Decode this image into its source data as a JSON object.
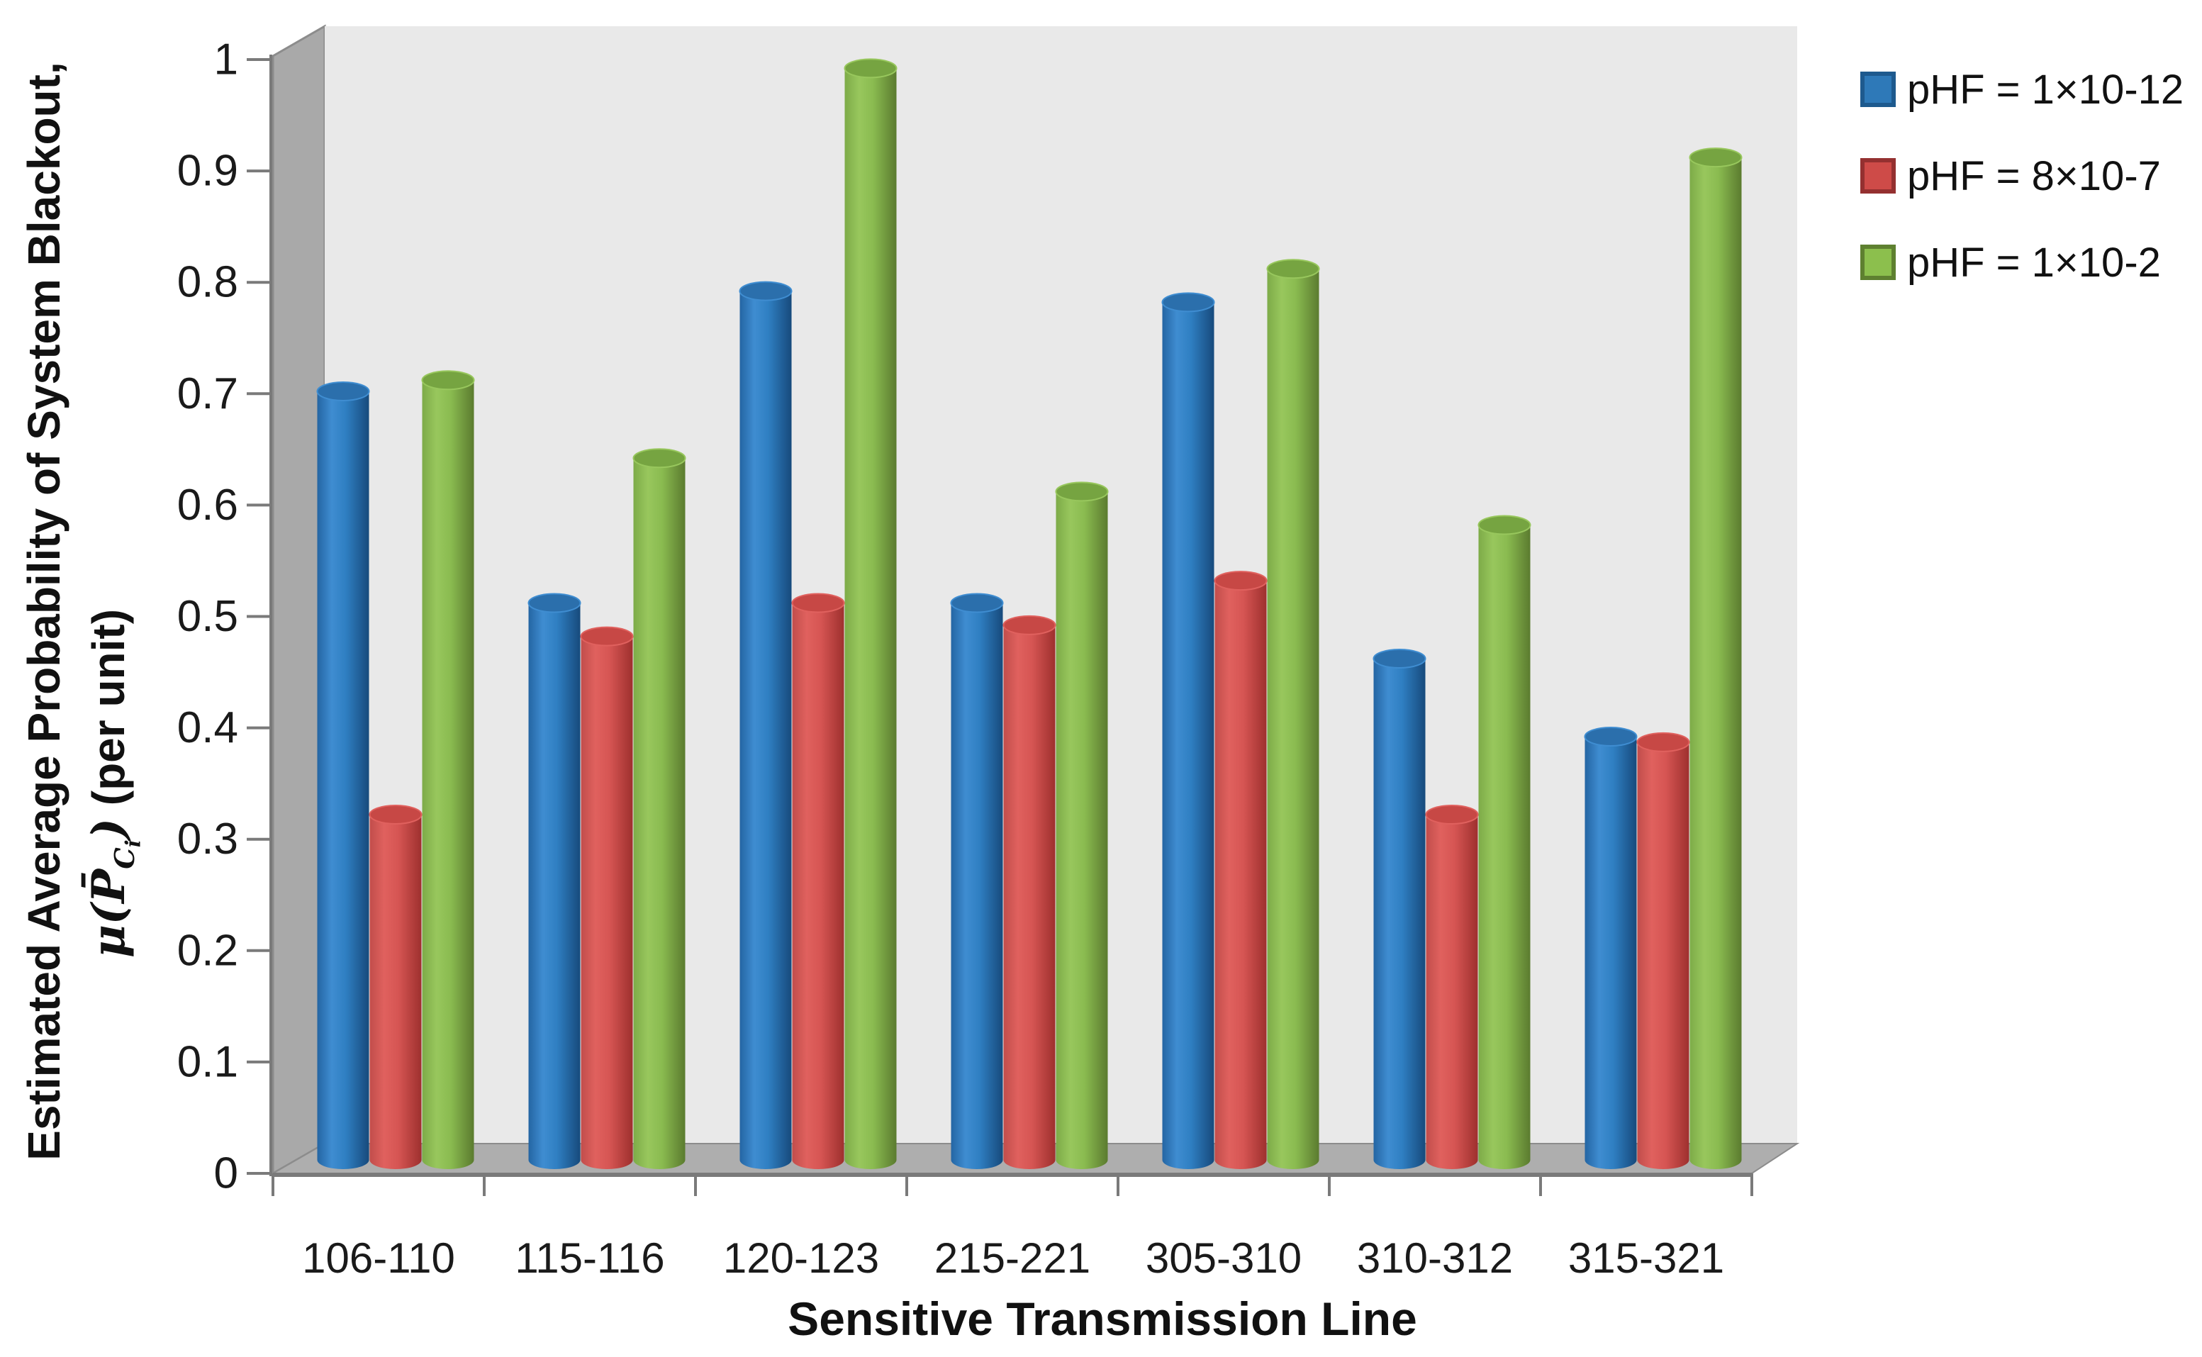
{
  "chart_data": {
    "type": "bar",
    "subtype": "3d-cylinder",
    "title": "",
    "xlabel": "Sensitive Transmission Line",
    "ylabel_line1": "Estimated Average Probability of System Blackout,",
    "ylabel_line2": {
      "mu_open": "μ(",
      "p_bar": "P̄",
      "sub_c": "C",
      "sub_i": "i",
      "close": ")",
      "unit": " (per unit)"
    },
    "categories": [
      "106-110",
      "115-116",
      "120-123",
      "215-221",
      "305-310",
      "310-312",
      "315-321"
    ],
    "series": [
      {
        "name": "pHF = 1×10-12",
        "values": [
          0.69,
          0.5,
          0.78,
          0.5,
          0.77,
          0.45,
          0.38
        ],
        "legend_fill": "#2E79B8",
        "legend_border": "#1E5A8E",
        "cyl": {
          "edge": "#2465A3",
          "light": "#3F8DD1",
          "mid": "#2F7FC2",
          "dark": "#174A7C",
          "top": "#2B6FAC"
        }
      },
      {
        "name": "pHF = 8×10-7",
        "values": [
          0.31,
          0.47,
          0.5,
          0.48,
          0.52,
          0.31,
          0.375
        ],
        "legend_fill": "#CE4B48",
        "legend_border": "#943030",
        "cyl": {
          "edge": "#C14D4B",
          "light": "#E0615E",
          "mid": "#D65553",
          "dark": "#9E302E",
          "top": "#C74845"
        }
      },
      {
        "name": "pHF = 1×10-2",
        "values": [
          0.7,
          0.63,
          0.98,
          0.6,
          0.8,
          0.57,
          0.9
        ],
        "legend_fill": "#8CBF4D",
        "legend_border": "#5E8030",
        "cyl": {
          "edge": "#7DAB48",
          "light": "#98C75D",
          "mid": "#8ABB50",
          "dark": "#5B7B2F",
          "top": "#76A441"
        }
      }
    ],
    "ylim": [
      0,
      1
    ],
    "ytick_step": 0.1,
    "yticks": [
      "0",
      "0.1",
      "0.2",
      "0.3",
      "0.4",
      "0.5",
      "0.6",
      "0.7",
      "0.8",
      "0.9",
      "1"
    ],
    "grid": false,
    "legend_position": "right"
  },
  "palette": {
    "back_wall": "#E9E9E9",
    "side_wall": "#A9A9A9",
    "floor": "#AEAEAE",
    "wall_edge": "#8C8C8C",
    "axis_line": "#7A7A7A",
    "text": "#1a1a1a"
  }
}
